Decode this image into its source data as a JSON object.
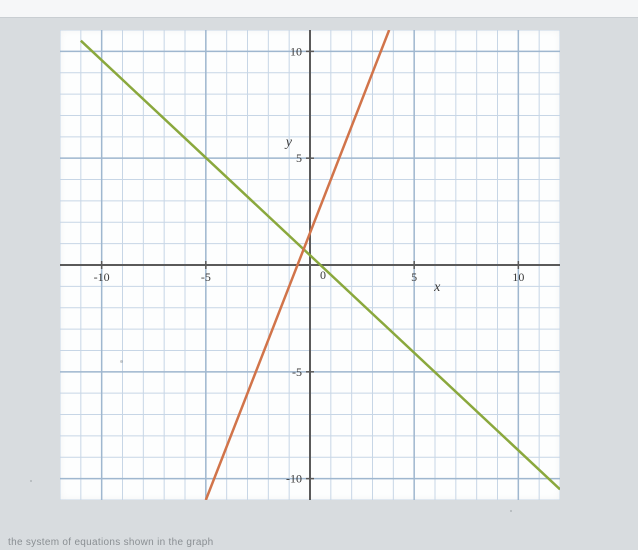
{
  "chart": {
    "type": "line",
    "background_color": "#fdfefe",
    "page_background": "#d8dcdf",
    "grid": {
      "minor_color": "#c7d6e6",
      "major_color": "#9fb7cf",
      "axis_color": "#5a5a5a",
      "step_minor": 1,
      "step_major": 5
    },
    "xlim": [
      -12,
      12
    ],
    "ylim": [
      -11,
      11
    ],
    "xticks": [
      -10,
      -5,
      0,
      5,
      10
    ],
    "yticks": [
      -10,
      -5,
      5,
      10
    ],
    "xtick_labels": [
      "-10",
      "-5",
      "0",
      "5",
      "10"
    ],
    "ytick_labels": [
      "-10",
      "-5",
      "5",
      "10"
    ],
    "tick_fontsize": 12,
    "axis_label_fontsize": 14,
    "xlabel": "x",
    "ylabel": "y",
    "origin_label": "0",
    "series": [
      {
        "name": "green-line",
        "color": "#8aa83d",
        "points": [
          [
            -11,
            10.5
          ],
          [
            12,
            -10.5
          ]
        ]
      },
      {
        "name": "orange-line",
        "color": "#d1744a",
        "points": [
          [
            -5,
            -11
          ],
          [
            3.8,
            11
          ]
        ]
      }
    ]
  },
  "footer": "the system of equations shown in the graph"
}
